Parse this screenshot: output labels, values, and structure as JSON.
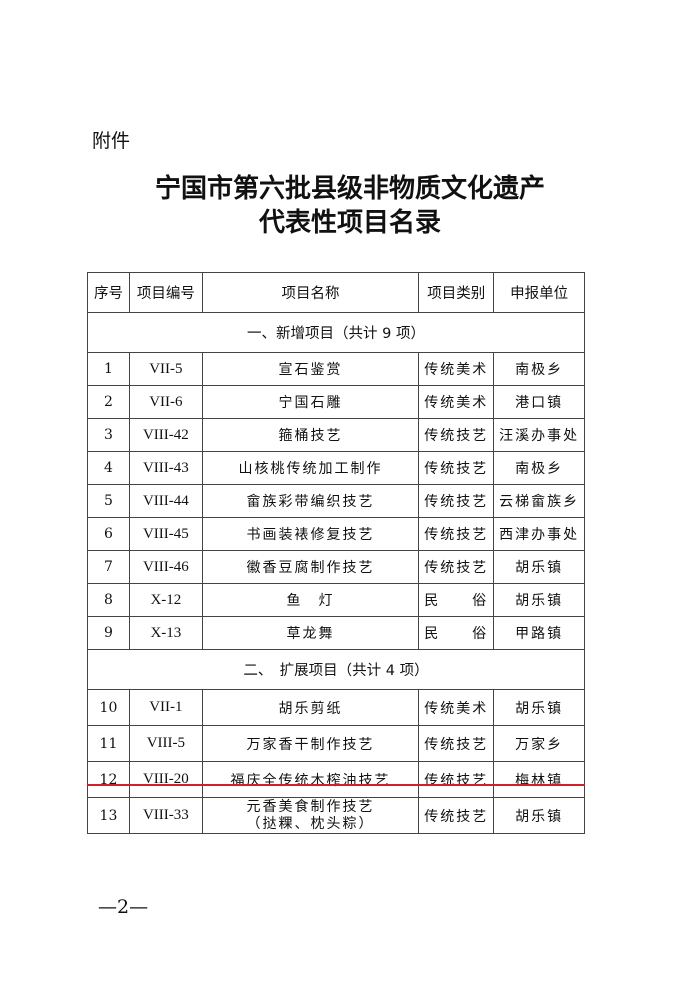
{
  "attachment_label": "附件",
  "title_line1": "宁国市第六批县级非物质文化遗产",
  "title_line2": "代表性项目名录",
  "headers": [
    "序号",
    "项目编号",
    "项目名称",
    "项目类别",
    "申报单位"
  ],
  "section1": {
    "label": "一、新增项目（共计 9 项）",
    "rows": [
      [
        "1",
        "VII-5",
        "宣石鉴赏",
        "传统美术",
        "南极乡"
      ],
      [
        "2",
        "VII-6",
        "宁国石雕",
        "传统美术",
        "港口镇"
      ],
      [
        "3",
        "VIII-42",
        "箍桶技艺",
        "传统技艺",
        "汪溪办事处"
      ],
      [
        "4",
        "VIII-43",
        "山核桃传统加工制作",
        "传统技艺",
        "南极乡"
      ],
      [
        "5",
        "VIII-44",
        "畲族彩带编织技艺",
        "传统技艺",
        "云梯畲族乡"
      ],
      [
        "6",
        "VIII-45",
        "书画装裱修复技艺",
        "传统技艺",
        "西津办事处"
      ],
      [
        "7",
        "VIII-46",
        "徽香豆腐制作技艺",
        "传统技艺",
        "胡乐镇"
      ],
      [
        "8",
        "X-12",
        "鱼　灯",
        "民　　俗",
        "胡乐镇"
      ],
      [
        "9",
        "X-13",
        "草龙舞",
        "民　　俗",
        "甲路镇"
      ]
    ]
  },
  "section2": {
    "label": "二、　扩展项目（共计 4 项）",
    "rows": [
      [
        "10",
        "VII-1",
        "胡乐剪纸",
        "传统美术",
        "胡乐镇"
      ],
      [
        "11",
        "VIII-5",
        "万家香干制作技艺",
        "传统技艺",
        "万家乡"
      ],
      [
        "12",
        "VIII-20",
        "福庆全传统木榨油技艺",
        "传统技艺",
        "梅林镇"
      ],
      [
        "13",
        "VIII-33",
        "元香美食制作技艺\n（挞粿、枕头粽）",
        "传统技艺",
        "胡乐镇"
      ]
    ]
  },
  "annotation_color": "#d0202a",
  "page_number": "—2—"
}
